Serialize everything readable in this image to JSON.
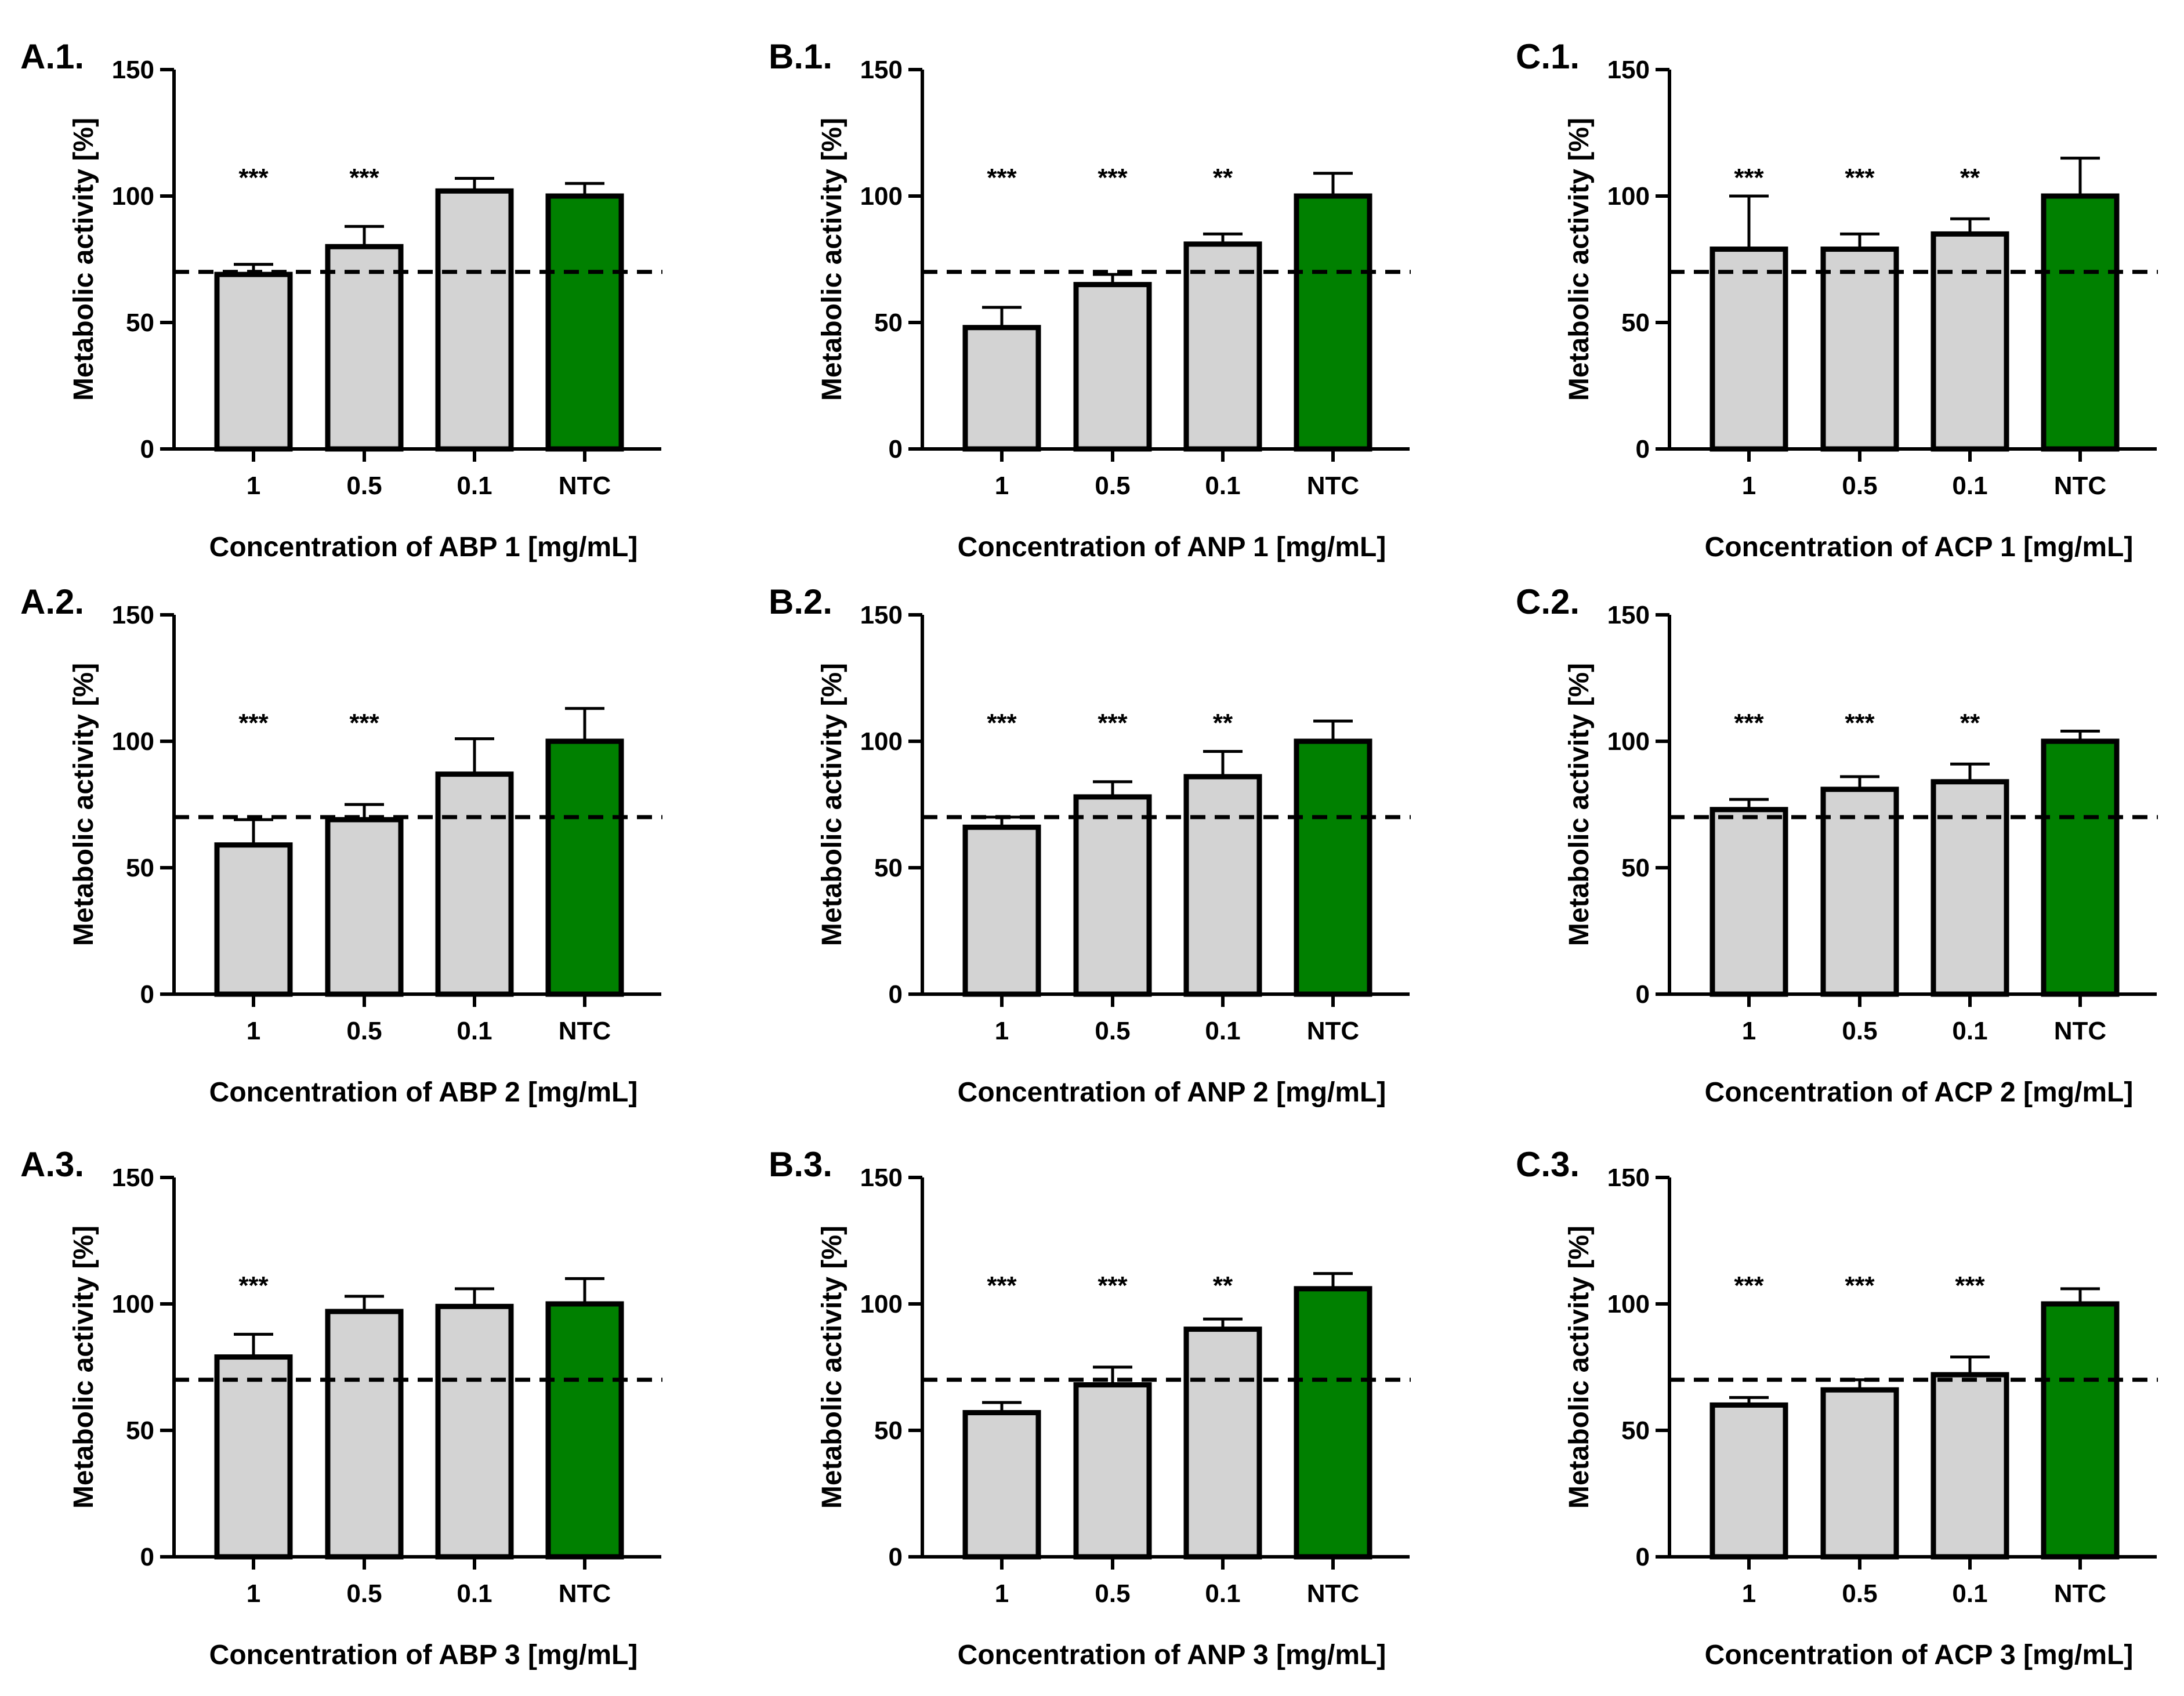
{
  "figure": {
    "y_axis_label": "Metabolic activity [%]",
    "categories": [
      "1",
      "0.5",
      "0.1",
      "NTC"
    ],
    "threshold": 70,
    "bar_fill": "#d3d3d3",
    "control_fill": "#008000",
    "edge_color": "#000000"
  },
  "chart_data": [
    {
      "type": "bar",
      "label": "A.1.",
      "xlabel": "Concentration of ABP 1 [mg/mL]",
      "ylabel": "Metabolic activity [%]",
      "ylim": [
        0,
        150
      ],
      "yticks": [
        0,
        50,
        100,
        150
      ],
      "categories": [
        "1",
        "0.5",
        "0.1",
        "NTC"
      ],
      "values": [
        69,
        80,
        102,
        100
      ],
      "errors": [
        4,
        8,
        5,
        5
      ],
      "significance": [
        "***",
        "***",
        "",
        ""
      ],
      "threshold": 70
    },
    {
      "type": "bar",
      "label": "B.1.",
      "xlabel": "Concentration of ANP 1 [mg/mL]",
      "ylabel": "Metabolic activity [%]",
      "ylim": [
        0,
        150
      ],
      "yticks": [
        0,
        50,
        100,
        150
      ],
      "categories": [
        "1",
        "0.5",
        "0.1",
        "NTC"
      ],
      "values": [
        48,
        65,
        81,
        100
      ],
      "errors": [
        8,
        4,
        4,
        9
      ],
      "significance": [
        "***",
        "***",
        "**",
        ""
      ],
      "threshold": 70
    },
    {
      "type": "bar",
      "label": "C.1.",
      "xlabel": "Concentration of ACP 1 [mg/mL]",
      "ylabel": "Metabolic activity [%]",
      "ylim": [
        0,
        150
      ],
      "yticks": [
        0,
        50,
        100,
        150
      ],
      "categories": [
        "1",
        "0.5",
        "0.1",
        "NTC"
      ],
      "values": [
        79,
        79,
        85,
        100
      ],
      "errors": [
        21,
        6,
        6,
        15
      ],
      "significance": [
        "***",
        "***",
        "**",
        ""
      ],
      "threshold": 70
    },
    {
      "type": "bar",
      "label": "A.2.",
      "xlabel": "Concentration of ABP 2 [mg/mL]",
      "ylabel": "Metabolic activity [%]",
      "ylim": [
        0,
        150
      ],
      "yticks": [
        0,
        50,
        100,
        150
      ],
      "categories": [
        "1",
        "0.5",
        "0.1",
        "NTC"
      ],
      "values": [
        59,
        69,
        87,
        100
      ],
      "errors": [
        10,
        6,
        14,
        13
      ],
      "significance": [
        "***",
        "***",
        "",
        ""
      ],
      "threshold": 70
    },
    {
      "type": "bar",
      "label": "B.2.",
      "xlabel": "Concentration of ANP 2 [mg/mL]",
      "ylabel": "Metabolic activity [%]",
      "ylim": [
        0,
        150
      ],
      "yticks": [
        0,
        50,
        100,
        150
      ],
      "categories": [
        "1",
        "0.5",
        "0.1",
        "NTC"
      ],
      "values": [
        66,
        78,
        86,
        100
      ],
      "errors": [
        4,
        6,
        10,
        8
      ],
      "significance": [
        "***",
        "***",
        "**",
        ""
      ],
      "threshold": 70
    },
    {
      "type": "bar",
      "label": "C.2.",
      "xlabel": "Concentration of ACP 2 [mg/mL]",
      "ylabel": "Metabolic activity [%]",
      "ylim": [
        0,
        150
      ],
      "yticks": [
        0,
        50,
        100,
        150
      ],
      "categories": [
        "1",
        "0.5",
        "0.1",
        "NTC"
      ],
      "values": [
        73,
        81,
        84,
        100
      ],
      "errors": [
        4,
        5,
        7,
        4
      ],
      "significance": [
        "***",
        "***",
        "**",
        ""
      ],
      "threshold": 70
    },
    {
      "type": "bar",
      "label": "A.3.",
      "xlabel": "Concentration of ABP 3 [mg/mL]",
      "ylabel": "Metabolic activity [%]",
      "ylim": [
        0,
        150
      ],
      "yticks": [
        0,
        50,
        100,
        150
      ],
      "categories": [
        "1",
        "0.5",
        "0.1",
        "NTC"
      ],
      "values": [
        79,
        97,
        99,
        100
      ],
      "errors": [
        9,
        6,
        7,
        10
      ],
      "significance": [
        "***",
        "",
        "",
        ""
      ],
      "threshold": 70
    },
    {
      "type": "bar",
      "label": "B.3.",
      "xlabel": "Concentration of ANP 3 [mg/mL]",
      "ylabel": "Metabolic activity [%]",
      "ylim": [
        0,
        150
      ],
      "yticks": [
        0,
        50,
        100,
        150
      ],
      "categories": [
        "1",
        "0.5",
        "0.1",
        "NTC"
      ],
      "values": [
        57,
        68,
        90,
        106
      ],
      "errors": [
        4,
        7,
        4,
        6
      ],
      "significance": [
        "***",
        "***",
        "**",
        ""
      ],
      "threshold": 70
    },
    {
      "type": "bar",
      "label": "C.3.",
      "xlabel": "Concentration of ACP 3 [mg/mL]",
      "ylabel": "Metabolic activity [%]",
      "ylim": [
        0,
        150
      ],
      "yticks": [
        0,
        50,
        100,
        150
      ],
      "categories": [
        "1",
        "0.5",
        "0.1",
        "NTC"
      ],
      "values": [
        60,
        66,
        72,
        100
      ],
      "errors": [
        3,
        4,
        7,
        6
      ],
      "significance": [
        "***",
        "***",
        "***",
        ""
      ],
      "threshold": 70
    }
  ]
}
